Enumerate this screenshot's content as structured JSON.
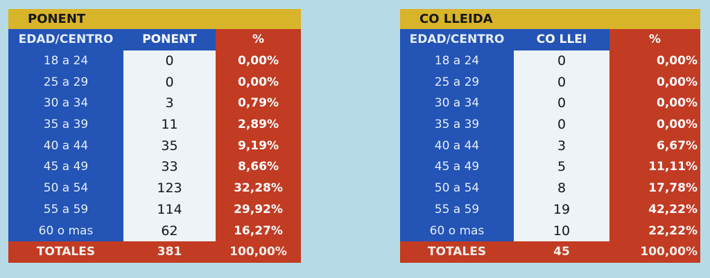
{
  "ponent": {
    "title": "PONENT",
    "headers": {
      "age": "EDAD/CENTRO",
      "value": "PONENT",
      "pct": "%"
    },
    "rows": [
      {
        "age": "18 a 24",
        "value": "0",
        "pct": "0,00%"
      },
      {
        "age": "25 a 29",
        "value": "0",
        "pct": "0,00%"
      },
      {
        "age": "30 a 34",
        "value": "3",
        "pct": "0,79%"
      },
      {
        "age": "35 a 39",
        "value": "11",
        "pct": "2,89%"
      },
      {
        "age": "40 a 44",
        "value": "35",
        "pct": "9,19%"
      },
      {
        "age": "45 a 49",
        "value": "33",
        "pct": "8,66%"
      },
      {
        "age": "50 a 54",
        "value": "123",
        "pct": "32,28%"
      },
      {
        "age": "55 a 59",
        "value": "114",
        "pct": "29,92%"
      },
      {
        "age": "60 o mas",
        "value": "62",
        "pct": "16,27%"
      }
    ],
    "total": {
      "label": "TOTALES",
      "value": "381",
      "pct": "100,00%"
    }
  },
  "colleida": {
    "title": "CO LLEIDA",
    "headers": {
      "age": "EDAD/CENTRO",
      "value": "CO LLEI",
      "pct": "%"
    },
    "rows": [
      {
        "age": "18 a 24",
        "value": "0",
        "pct": "0,00%"
      },
      {
        "age": "25 a 29",
        "value": "0",
        "pct": "0,00%"
      },
      {
        "age": "30 a 34",
        "value": "0",
        "pct": "0,00%"
      },
      {
        "age": "35 a 39",
        "value": "0",
        "pct": "0,00%"
      },
      {
        "age": "40 a 44",
        "value": "3",
        "pct": "6,67%"
      },
      {
        "age": "45 a 49",
        "value": "5",
        "pct": "11,11%"
      },
      {
        "age": "50 a 54",
        "value": "8",
        "pct": "17,78%"
      },
      {
        "age": "55 a 59",
        "value": "19",
        "pct": "42,22%"
      },
      {
        "age": "60 o mas",
        "value": "10",
        "pct": "22,22%"
      }
    ],
    "total": {
      "label": "TOTALES",
      "value": "45",
      "pct": "100,00%"
    }
  }
}
